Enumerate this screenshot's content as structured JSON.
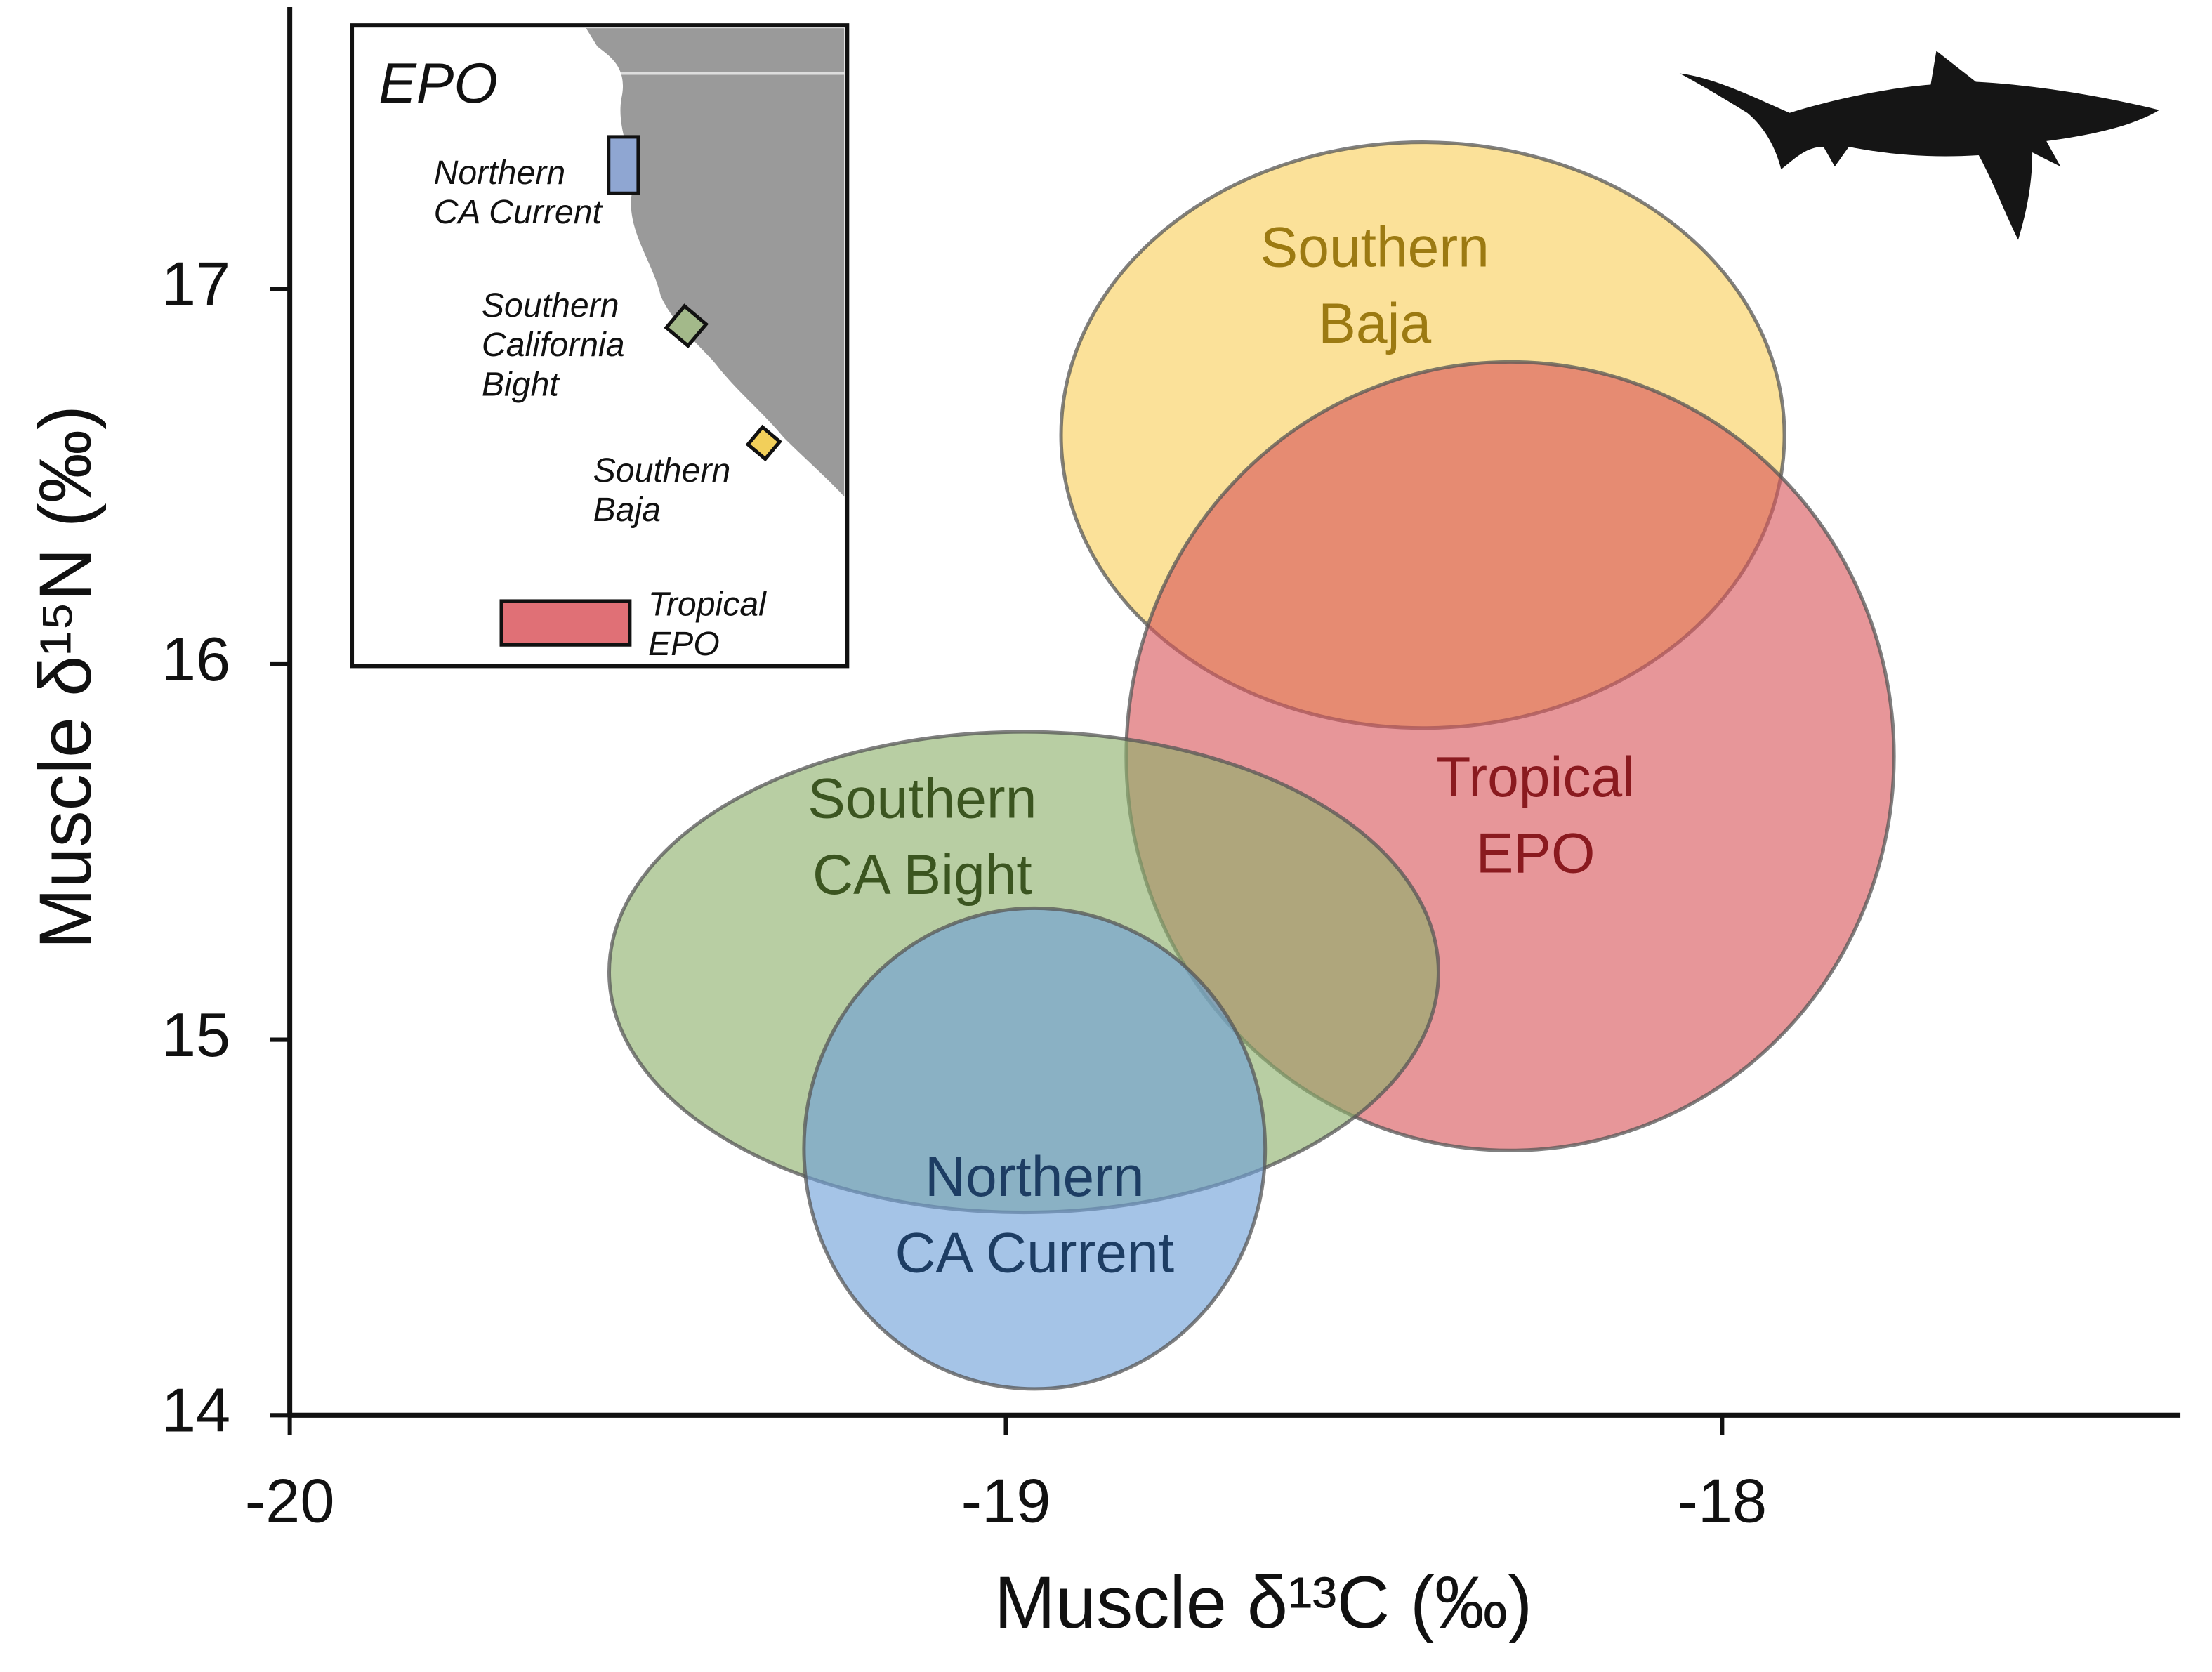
{
  "chart_data": {
    "type": "ellipse",
    "xlabel": "Muscle δ¹³C (‰)",
    "ylabel": "Muscle δ¹⁵N (‰)",
    "xlim": [
      -20,
      -17.36
    ],
    "ylim": [
      14,
      17.75
    ],
    "xticks": [
      -20,
      -19,
      -18
    ],
    "yticks": [
      14,
      15,
      16,
      17
    ],
    "series": [
      {
        "name": [
          "Southern",
          "Baja"
        ],
        "color": "#f9cf5a",
        "label_color": "#9c7a12",
        "cx": -18.418,
        "cy": 16.61,
        "rx": 0.505,
        "ry": 0.78
      },
      {
        "name": [
          "Tropical",
          "EPO"
        ],
        "color": "#d8555a",
        "label_color": "#8a1a1f",
        "cx": -18.296,
        "cy": 15.755,
        "rx": 0.536,
        "ry": 1.05
      },
      {
        "name": [
          "Southern",
          "CA Bight"
        ],
        "color": "#8cb06a",
        "label_color": "#3b5520",
        "cx": -18.975,
        "cy": 15.18,
        "rx": 0.579,
        "ry": 0.64
      },
      {
        "name": [
          "Northern",
          "CA Current"
        ],
        "color": "#6e9fd8",
        "label_color": "#1d3d63",
        "cx": -18.96,
        "cy": 14.71,
        "rx": 0.322,
        "ry": 0.64
      }
    ],
    "inset": {
      "title": "EPO",
      "labels": [
        [
          "Northern",
          "CA Current"
        ],
        [
          "Southern",
          "California",
          "Bight"
        ],
        [
          "Southern",
          "Baja"
        ],
        [
          "Tropical",
          "EPO"
        ]
      ]
    }
  }
}
